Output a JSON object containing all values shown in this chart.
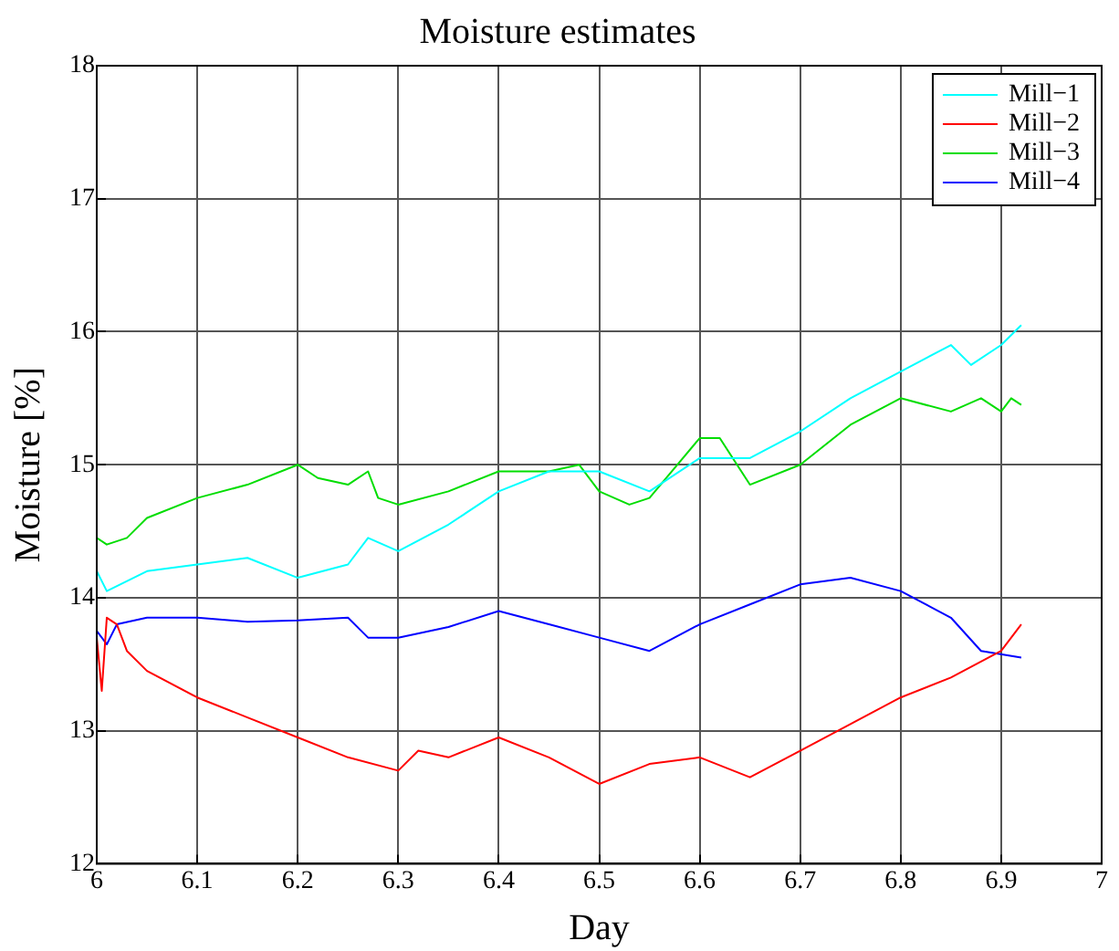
{
  "chart_data": {
    "type": "line",
    "title": "Moisture estimates",
    "xlabel": "Day",
    "ylabel": "Moisture [%]",
    "xlim": [
      6,
      7
    ],
    "xticks": [
      6,
      6.1,
      6.2,
      6.3,
      6.4,
      6.5,
      6.6,
      6.7,
      6.8,
      6.9,
      7
    ],
    "ylim": [
      12,
      18
    ],
    "yticks": [
      12,
      13,
      14,
      15,
      16,
      17,
      18
    ],
    "grid": true,
    "legend": "top right",
    "marker": "none",
    "line_style": "solid",
    "series": [
      {
        "name": "Mill−1",
        "color": "#00ffff",
        "x": [
          6,
          6.01,
          6.05,
          6.1,
          6.15,
          6.2,
          6.25,
          6.27,
          6.3,
          6.35,
          6.4,
          6.45,
          6.5,
          6.55,
          6.6,
          6.65,
          6.7,
          6.75,
          6.8,
          6.85,
          6.87,
          6.9,
          6.92
        ],
        "values": [
          14.2,
          14.05,
          14.2,
          14.25,
          14.3,
          14.15,
          14.25,
          14.45,
          14.35,
          14.55,
          14.8,
          14.95,
          14.95,
          14.8,
          15.05,
          15.05,
          15.25,
          15.5,
          15.7,
          15.9,
          15.75,
          15.9,
          16.05
        ]
      },
      {
        "name": "Mill−2",
        "color": "#ff0000",
        "x": [
          6,
          6.005,
          6.01,
          6.02,
          6.03,
          6.05,
          6.1,
          6.15,
          6.2,
          6.25,
          6.3,
          6.32,
          6.35,
          6.4,
          6.45,
          6.5,
          6.55,
          6.6,
          6.65,
          6.7,
          6.75,
          6.8,
          6.85,
          6.9,
          6.92
        ],
        "values": [
          13.7,
          13.3,
          13.85,
          13.8,
          13.6,
          13.45,
          13.25,
          13.1,
          12.95,
          12.8,
          12.7,
          12.85,
          12.8,
          12.95,
          12.8,
          12.6,
          12.75,
          12.8,
          12.65,
          12.85,
          13.05,
          13.25,
          13.4,
          13.6,
          13.8
        ]
      },
      {
        "name": "Mill−3",
        "color": "#00dd00",
        "x": [
          6,
          6.01,
          6.03,
          6.05,
          6.1,
          6.15,
          6.2,
          6.22,
          6.25,
          6.27,
          6.28,
          6.3,
          6.35,
          6.4,
          6.45,
          6.48,
          6.5,
          6.53,
          6.55,
          6.6,
          6.62,
          6.65,
          6.7,
          6.75,
          6.8,
          6.85,
          6.88,
          6.9,
          6.91,
          6.92
        ],
        "values": [
          14.45,
          14.4,
          14.45,
          14.6,
          14.75,
          14.85,
          15,
          14.9,
          14.85,
          14.95,
          14.75,
          14.7,
          14.8,
          14.95,
          14.95,
          15,
          14.8,
          14.7,
          14.75,
          15.2,
          15.2,
          14.85,
          15,
          15.3,
          15.5,
          15.4,
          15.5,
          15.4,
          15.5,
          15.45
        ]
      },
      {
        "name": "Mill−4",
        "color": "#0000ff",
        "x": [
          6,
          6.01,
          6.02,
          6.05,
          6.1,
          6.15,
          6.2,
          6.25,
          6.27,
          6.3,
          6.35,
          6.4,
          6.45,
          6.5,
          6.55,
          6.6,
          6.65,
          6.7,
          6.75,
          6.8,
          6.85,
          6.88,
          6.92
        ],
        "values": [
          13.75,
          13.65,
          13.8,
          13.85,
          13.85,
          13.82,
          13.83,
          13.85,
          13.7,
          13.7,
          13.78,
          13.9,
          13.8,
          13.7,
          13.6,
          13.8,
          13.95,
          14.1,
          14.15,
          14.05,
          13.85,
          13.6,
          13.55
        ]
      }
    ]
  }
}
